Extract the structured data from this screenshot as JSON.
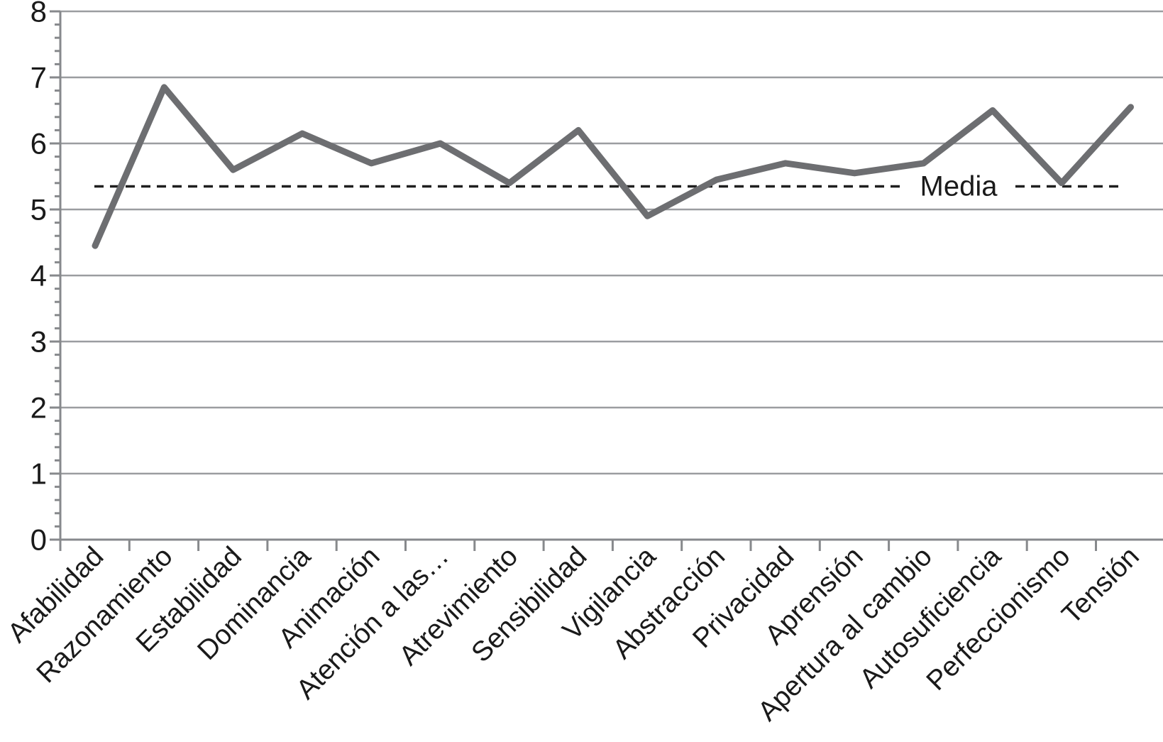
{
  "chart_data": {
    "type": "line",
    "title": "",
    "categories": [
      "Afabilidad",
      "Razonamiento",
      "Estabilidad",
      "Dominancia",
      "Animación",
      "Atención a las…",
      "Atrevimiento",
      "Sensibilidad",
      "Vigilancia",
      "Abstracción",
      "Privacidad",
      "Aprensión",
      "Apertura al cambio",
      "Autosuficiencia",
      "Perfeccionismo",
      "Tensión"
    ],
    "values": [
      4.45,
      6.85,
      5.6,
      6.15,
      5.7,
      6.0,
      5.4,
      6.2,
      4.9,
      5.45,
      5.7,
      5.55,
      5.7,
      6.5,
      5.4,
      6.55
    ],
    "reference_line": {
      "label": "Media",
      "value": 5.35
    },
    "xlabel": "",
    "ylabel": "",
    "ylim": [
      0,
      8
    ],
    "y_major_step": 1,
    "y_minor_step": 0.2,
    "y_tick_labels": [
      "0",
      "1",
      "2",
      "3",
      "4",
      "5",
      "6",
      "7",
      "8"
    ],
    "grid": "horizontal-major",
    "legend": "none",
    "x_label_rotation_deg": -45,
    "colors": {
      "series_line": "#6d6e71",
      "gridline": "#9b9da0",
      "axis": "#87898c",
      "reference_dash": "#1f1f1f",
      "label_text": "#1a1a1a",
      "background": "#ffffff"
    }
  }
}
